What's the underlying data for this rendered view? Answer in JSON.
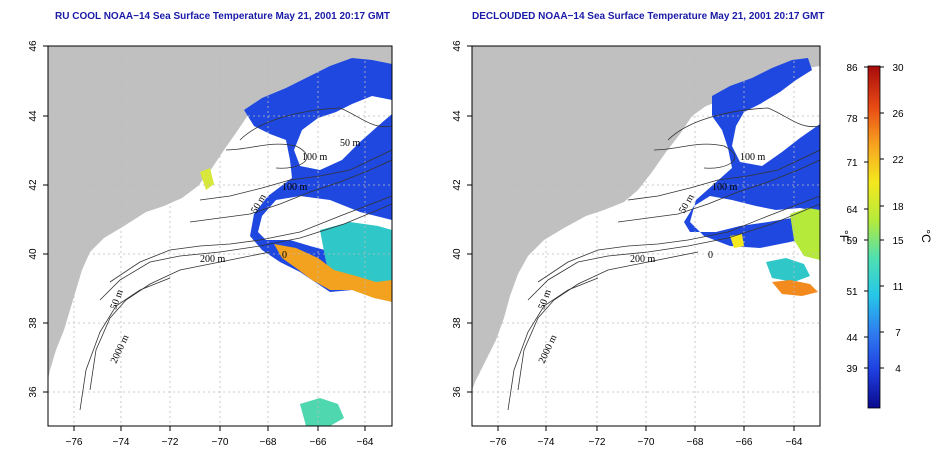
{
  "maps": [
    {
      "id": "left",
      "title": "RU COOL NOAA−14 Sea Surface Temperature May 21, 2001 20:17 GMT",
      "contour_labels": [
        "100 m",
        "50 m",
        "100 m",
        "50 m",
        "200 m",
        "50 m",
        "2000 m",
        "0"
      ]
    },
    {
      "id": "right",
      "title": "DECLOUDED NOAA−14 Sea Surface Temperature May 21, 2001 20:17 GMT",
      "contour_labels": [
        "100 m",
        "100 m",
        "50 m",
        "200 m",
        "50 m",
        "2000 m",
        "0"
      ]
    }
  ],
  "axes": {
    "lon_ticks": [
      "−76",
      "−74",
      "−72",
      "−70",
      "−68",
      "−66",
      "−64"
    ],
    "lat_ticks": [
      "46",
      "44",
      "42",
      "40",
      "38",
      "36"
    ],
    "lon_range": [
      -77,
      -63
    ],
    "lat_range": [
      35,
      46
    ]
  },
  "colorbar": {
    "fahrenheit_label": "°F",
    "celsius_label": "°C",
    "fahrenheit_ticks": [
      "86",
      "78",
      "71",
      "64",
      "59",
      "51",
      "44",
      "39"
    ],
    "celsius_ticks": [
      "30",
      "26",
      "22",
      "18",
      "15",
      "11",
      "7",
      "4"
    ],
    "celsius_range": [
      0,
      30
    ],
    "colors": [
      "#0a0a8c",
      "#1f3fe0",
      "#2f7cf0",
      "#26c7e8",
      "#4fe0b0",
      "#b6ea3a",
      "#f4e81e",
      "#f7a320",
      "#e84a14",
      "#a60b0b"
    ]
  },
  "colors": {
    "land": "#c0c0c0",
    "water": "#ffffff",
    "cold_water": "#1f48e0",
    "warm_water": "#f28a1e"
  }
}
